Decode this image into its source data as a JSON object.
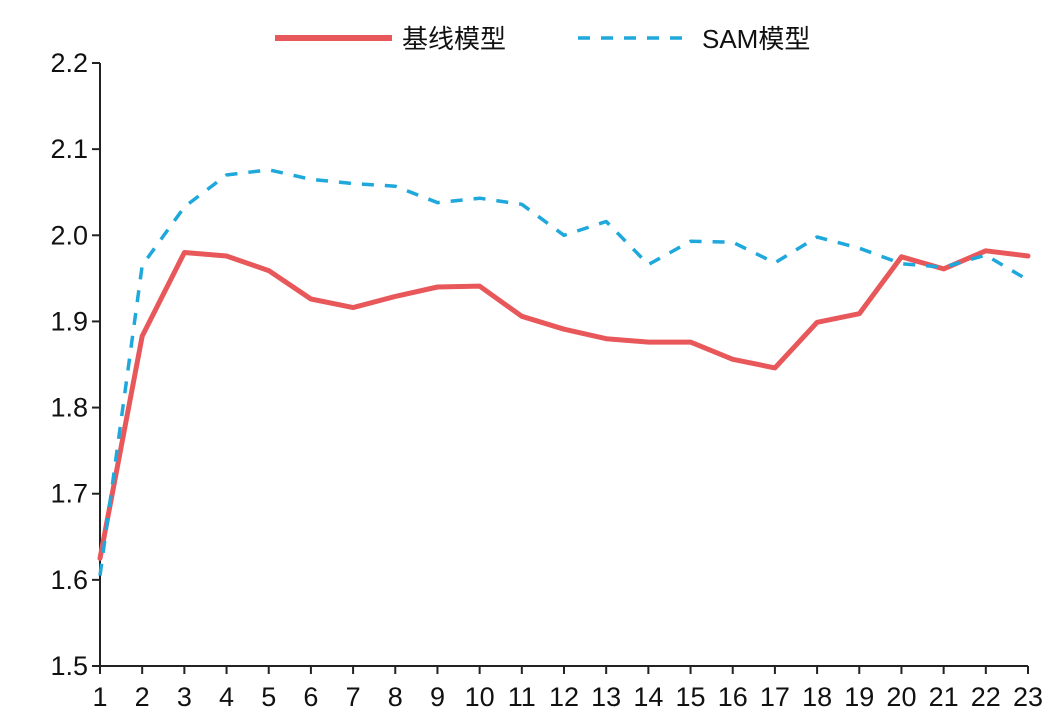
{
  "chart_data": {
    "type": "line",
    "title": "",
    "xlabel": "",
    "ylabel": "",
    "categories": [
      "1",
      "2",
      "3",
      "4",
      "5",
      "6",
      "7",
      "8",
      "9",
      "10",
      "11",
      "12",
      "13",
      "14",
      "15",
      "16",
      "17",
      "18",
      "19",
      "20",
      "21",
      "22",
      "23"
    ],
    "ylim": [
      1.5,
      2.2
    ],
    "yticks": [
      "1.5",
      "1.6",
      "1.7",
      "1.8",
      "1.9",
      "2.0",
      "2.1",
      "2.2"
    ],
    "grid": false,
    "legend_position": "top-center",
    "series": [
      {
        "name": "基线模型",
        "color": "#e8585a",
        "style": "solid",
        "values": [
          1.625,
          1.883,
          1.98,
          1.976,
          1.959,
          1.926,
          1.916,
          1.929,
          1.94,
          1.941,
          1.906,
          1.891,
          1.88,
          1.876,
          1.876,
          1.856,
          1.846,
          1.899,
          1.909,
          1.975,
          1.961,
          1.982,
          1.976
        ]
      },
      {
        "name": "SAM模型",
        "color": "#1ea8dc",
        "style": "dashed",
        "values": [
          1.605,
          1.965,
          2.033,
          2.07,
          2.076,
          2.065,
          2.06,
          2.057,
          2.038,
          2.043,
          2.036,
          2.0,
          2.016,
          1.966,
          1.993,
          1.992,
          1.968,
          1.998,
          1.985,
          1.967,
          1.963,
          1.977,
          1.948
        ]
      }
    ]
  }
}
